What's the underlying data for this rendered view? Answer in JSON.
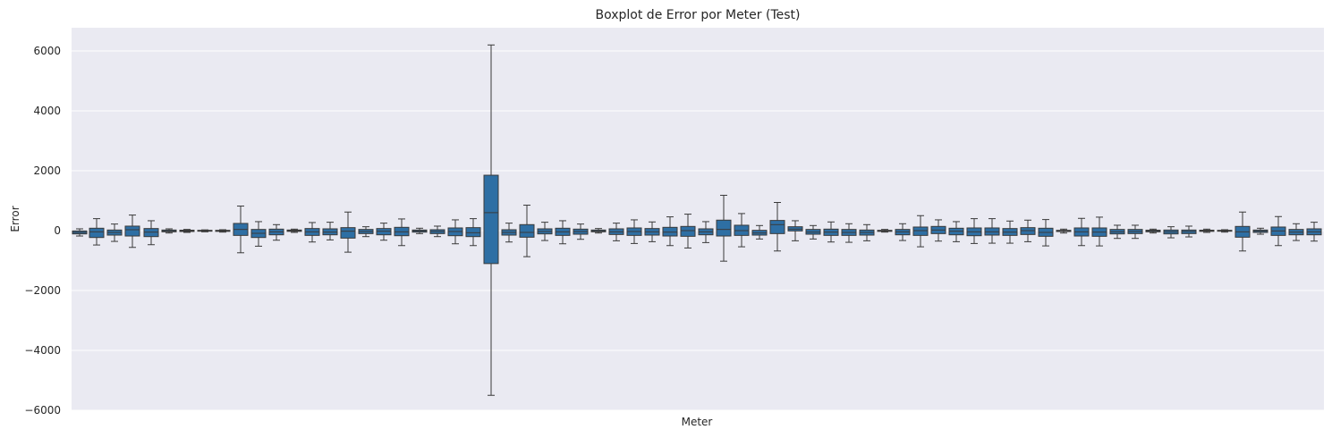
{
  "chart_data": {
    "type": "boxplot",
    "title": "Boxplot de Error por Meter (Test)",
    "xlabel": "Meter",
    "ylabel": "Error",
    "ylim": [
      -6000,
      6800
    ],
    "yticks": [
      -6000,
      -4000,
      -2000,
      0,
      2000,
      4000,
      6000
    ],
    "yticklabels": [
      "−6000",
      "−4000",
      "−2000",
      "0",
      "2000",
      "4000",
      "6000"
    ],
    "grid": true,
    "box_color": "#2e6fa4",
    "line_color": "#3a3a3a",
    "background": "#eaeaf2",
    "boxes": [
      {
        "wlo": -180,
        "q1": -110,
        "med": -60,
        "q3": -10,
        "whi": 60
      },
      {
        "wlo": -480,
        "q1": -230,
        "med": -40,
        "q3": 80,
        "whi": 400
      },
      {
        "wlo": -360,
        "q1": -150,
        "med": -60,
        "q3": 20,
        "whi": 220
      },
      {
        "wlo": -560,
        "q1": -180,
        "med": 30,
        "q3": 150,
        "whi": 520
      },
      {
        "wlo": -470,
        "q1": -200,
        "med": -50,
        "q3": 70,
        "whi": 330
      },
      {
        "wlo": -80,
        "q1": -40,
        "med": -10,
        "q3": 20,
        "whi": 60
      },
      {
        "wlo": -60,
        "q1": -30,
        "med": -5,
        "q3": 15,
        "whi": 40
      },
      {
        "wlo": -40,
        "q1": -15,
        "med": 0,
        "q3": 10,
        "whi": 25
      },
      {
        "wlo": -50,
        "q1": -25,
        "med": -5,
        "q3": 10,
        "whi": 30
      },
      {
        "wlo": -740,
        "q1": -160,
        "med": 40,
        "q3": 240,
        "whi": 820
      },
      {
        "wlo": -520,
        "q1": -230,
        "med": -90,
        "q3": 40,
        "whi": 300
      },
      {
        "wlo": -320,
        "q1": -140,
        "med": -40,
        "q3": 50,
        "whi": 200
      },
      {
        "wlo": -60,
        "q1": -25,
        "med": 0,
        "q3": 20,
        "whi": 50
      },
      {
        "wlo": -380,
        "q1": -160,
        "med": -40,
        "q3": 70,
        "whi": 270
      },
      {
        "wlo": -310,
        "q1": -140,
        "med": -50,
        "q3": 60,
        "whi": 280
      },
      {
        "wlo": -720,
        "q1": -250,
        "med": -20,
        "q3": 100,
        "whi": 620
      },
      {
        "wlo": -200,
        "q1": -100,
        "med": -30,
        "q3": 40,
        "whi": 130
      },
      {
        "wlo": -320,
        "q1": -140,
        "med": -20,
        "q3": 70,
        "whi": 250
      },
      {
        "wlo": -500,
        "q1": -170,
        "med": -40,
        "q3": 110,
        "whi": 390
      },
      {
        "wlo": -100,
        "q1": -50,
        "med": -10,
        "q3": 20,
        "whi": 80
      },
      {
        "wlo": -200,
        "q1": -100,
        "med": -30,
        "q3": 30,
        "whi": 150
      },
      {
        "wlo": -440,
        "q1": -170,
        "med": -30,
        "q3": 90,
        "whi": 360
      },
      {
        "wlo": -500,
        "q1": -200,
        "med": -70,
        "q3": 100,
        "whi": 400
      },
      {
        "wlo": -5500,
        "q1": -1100,
        "med": 600,
        "q3": 1850,
        "whi": 6200
      },
      {
        "wlo": -380,
        "q1": -150,
        "med": -60,
        "q3": 30,
        "whi": 250
      },
      {
        "wlo": -870,
        "q1": -220,
        "med": -60,
        "q3": 200,
        "whi": 850
      },
      {
        "wlo": -330,
        "q1": -110,
        "med": -30,
        "q3": 60,
        "whi": 280
      },
      {
        "wlo": -440,
        "q1": -160,
        "med": -40,
        "q3": 80,
        "whi": 330
      },
      {
        "wlo": -290,
        "q1": -120,
        "med": -30,
        "q3": 50,
        "whi": 220
      },
      {
        "wlo": -80,
        "q1": -40,
        "med": -10,
        "q3": 20,
        "whi": 70
      },
      {
        "wlo": -340,
        "q1": -130,
        "med": -40,
        "q3": 60,
        "whi": 250
      },
      {
        "wlo": -430,
        "q1": -160,
        "med": -30,
        "q3": 90,
        "whi": 360
      },
      {
        "wlo": -370,
        "q1": -150,
        "med": -40,
        "q3": 70,
        "whi": 290
      },
      {
        "wlo": -500,
        "q1": -180,
        "med": -50,
        "q3": 110,
        "whi": 460
      },
      {
        "wlo": -580,
        "q1": -190,
        "med": 0,
        "q3": 140,
        "whi": 550
      },
      {
        "wlo": -400,
        "q1": -140,
        "med": -40,
        "q3": 60,
        "whi": 300
      },
      {
        "wlo": -1020,
        "q1": -180,
        "med": 40,
        "q3": 350,
        "whi": 1180
      },
      {
        "wlo": -540,
        "q1": -160,
        "med": 0,
        "q3": 180,
        "whi": 570
      },
      {
        "wlo": -280,
        "q1": -150,
        "med": -80,
        "q3": 10,
        "whi": 170
      },
      {
        "wlo": -680,
        "q1": -100,
        "med": 200,
        "q3": 340,
        "whi": 940
      },
      {
        "wlo": -340,
        "q1": -10,
        "med": 50,
        "q3": 130,
        "whi": 330
      },
      {
        "wlo": -280,
        "q1": -120,
        "med": -50,
        "q3": 40,
        "whi": 170
      },
      {
        "wlo": -380,
        "q1": -160,
        "med": -50,
        "q3": 50,
        "whi": 290
      },
      {
        "wlo": -390,
        "q1": -160,
        "med": -60,
        "q3": 40,
        "whi": 230
      },
      {
        "wlo": -340,
        "q1": -150,
        "med": -60,
        "q3": 20,
        "whi": 200
      },
      {
        "wlo": -50,
        "q1": -25,
        "med": -5,
        "q3": 10,
        "whi": 40
      },
      {
        "wlo": -330,
        "q1": -140,
        "med": -40,
        "q3": 40,
        "whi": 230
      },
      {
        "wlo": -540,
        "q1": -160,
        "med": 0,
        "q3": 120,
        "whi": 500
      },
      {
        "wlo": -350,
        "q1": -100,
        "med": 20,
        "q3": 140,
        "whi": 360
      },
      {
        "wlo": -370,
        "q1": -140,
        "med": -20,
        "q3": 80,
        "whi": 300
      },
      {
        "wlo": -430,
        "q1": -170,
        "med": -40,
        "q3": 90,
        "whi": 400
      },
      {
        "wlo": -420,
        "q1": -150,
        "med": -40,
        "q3": 90,
        "whi": 400
      },
      {
        "wlo": -420,
        "q1": -160,
        "med": -50,
        "q3": 70,
        "whi": 320
      },
      {
        "wlo": -370,
        "q1": -130,
        "med": 0,
        "q3": 100,
        "whi": 350
      },
      {
        "wlo": -510,
        "q1": -190,
        "med": -60,
        "q3": 80,
        "whi": 370
      },
      {
        "wlo": -80,
        "q1": -30,
        "med": -10,
        "q3": 10,
        "whi": 50
      },
      {
        "wlo": -500,
        "q1": -180,
        "med": -40,
        "q3": 90,
        "whi": 410
      },
      {
        "wlo": -510,
        "q1": -190,
        "med": -50,
        "q3": 90,
        "whi": 450
      },
      {
        "wlo": -260,
        "q1": -110,
        "med": -40,
        "q3": 40,
        "whi": 180
      },
      {
        "wlo": -260,
        "q1": -100,
        "med": -30,
        "q3": 40,
        "whi": 180
      },
      {
        "wlo": -80,
        "q1": -40,
        "med": -10,
        "q3": 15,
        "whi": 50
      },
      {
        "wlo": -240,
        "q1": -110,
        "med": -40,
        "q3": 20,
        "whi": 130
      },
      {
        "wlo": -210,
        "q1": -100,
        "med": -30,
        "q3": 20,
        "whi": 150
      },
      {
        "wlo": -60,
        "q1": -25,
        "med": 0,
        "q3": 15,
        "whi": 50
      },
      {
        "wlo": -50,
        "q1": -20,
        "med": 0,
        "q3": 10,
        "whi": 30
      },
      {
        "wlo": -680,
        "q1": -220,
        "med": -40,
        "q3": 140,
        "whi": 620
      },
      {
        "wlo": -120,
        "q1": -60,
        "med": -20,
        "q3": 20,
        "whi": 80
      },
      {
        "wlo": -500,
        "q1": -160,
        "med": -10,
        "q3": 120,
        "whi": 470
      },
      {
        "wlo": -330,
        "q1": -140,
        "med": -50,
        "q3": 40,
        "whi": 230
      },
      {
        "wlo": -350,
        "q1": -140,
        "med": -40,
        "q3": 60,
        "whi": 280
      }
    ],
    "positions_note": "",
    "x_positions": [
      89,
      108,
      128,
      148,
      169,
      189,
      209,
      229,
      249,
      269,
      289,
      309,
      329,
      349,
      369,
      389,
      409,
      429,
      449,
      469,
      489,
      509,
      529,
      549,
      569,
      589,
      609,
      629,
      649,
      669,
      689,
      709,
      729,
      749,
      769,
      789,
      809,
      829,
      849,
      869,
      889,
      909,
      929,
      949,
      969,
      989,
      1009,
      1029,
      1049,
      1069,
      1089,
      1109,
      1129,
      1149,
      1169,
      1189,
      1209,
      1229,
      1249,
      1269,
      1289,
      1309,
      1329,
      1349,
      1369,
      1389,
      1409,
      1429,
      1449,
      1469
    ]
  }
}
